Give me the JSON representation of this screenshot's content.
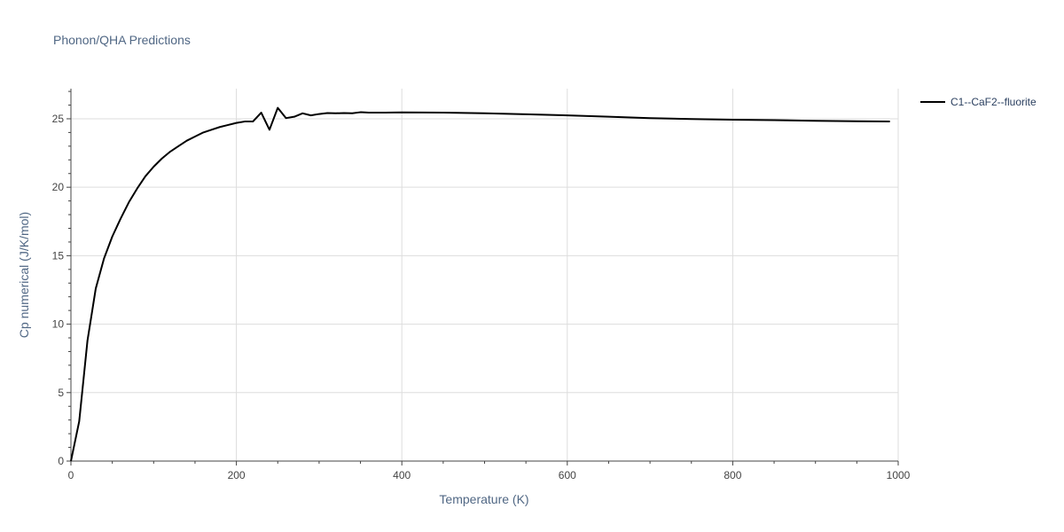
{
  "chart_data": {
    "type": "line",
    "title": "Phonon/QHA Predictions",
    "xlabel": "Temperature (K)",
    "ylabel": "Cp numerical (J/K/mol)",
    "xlim": [
      0,
      1000
    ],
    "ylim": [
      0,
      27.2
    ],
    "x_ticks": [
      0,
      200,
      400,
      600,
      800,
      1000
    ],
    "y_ticks": [
      0,
      5,
      10,
      15,
      20,
      25
    ],
    "grid": true,
    "legend_position": "right",
    "series": [
      {
        "name": "C1--CaF2--fluorite",
        "color": "#000000",
        "x": [
          0,
          10,
          20,
          30,
          40,
          50,
          60,
          70,
          80,
          90,
          100,
          110,
          120,
          130,
          140,
          150,
          160,
          170,
          180,
          190,
          200,
          210,
          220,
          230,
          240,
          250,
          260,
          270,
          280,
          290,
          300,
          310,
          320,
          330,
          340,
          350,
          360,
          380,
          400,
          450,
          500,
          550,
          600,
          650,
          700,
          750,
          800,
          850,
          900,
          950,
          990
        ],
        "y": [
          0,
          2.9,
          8.8,
          12.6,
          14.8,
          16.4,
          17.7,
          18.9,
          19.9,
          20.8,
          21.5,
          22.1,
          22.6,
          23.0,
          23.4,
          23.7,
          24.0,
          24.2,
          24.4,
          24.55,
          24.7,
          24.8,
          24.8,
          25.45,
          24.2,
          25.8,
          25.05,
          25.15,
          25.4,
          25.25,
          25.35,
          25.42,
          25.4,
          25.42,
          25.4,
          25.48,
          25.45,
          25.45,
          25.47,
          25.45,
          25.4,
          25.33,
          25.25,
          25.15,
          25.05,
          24.98,
          24.93,
          24.9,
          24.85,
          24.82,
          24.8
        ]
      }
    ]
  }
}
